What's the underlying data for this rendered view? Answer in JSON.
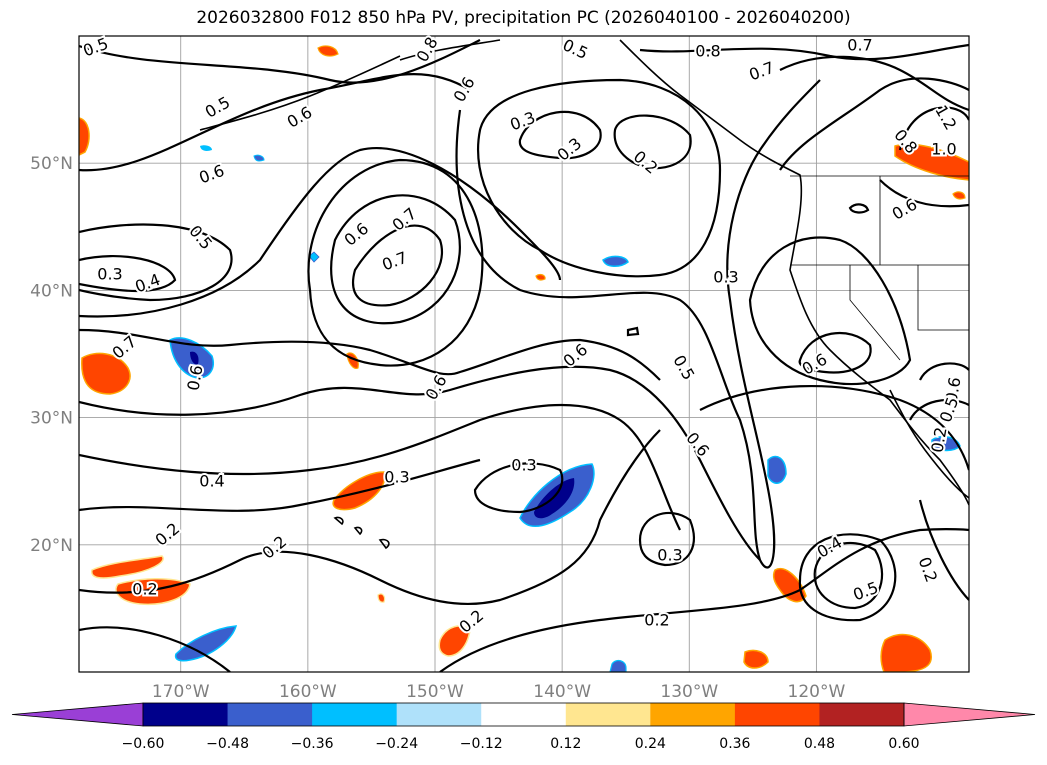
{
  "title": "2026032800 F012 850 hPa PV, precipitation PC (2026040100 - 2026040200)",
  "lat_labels": [
    {
      "text": "50°N",
      "lat": 50
    },
    {
      "text": "40°N",
      "lat": 40
    },
    {
      "text": "30°N",
      "lat": 30
    },
    {
      "text": "20°N",
      "lat": 20
    }
  ],
  "lon_labels": [
    {
      "text": "170°W",
      "lon": -170
    },
    {
      "text": "160°W",
      "lon": -160
    },
    {
      "text": "150°W",
      "lon": -150
    },
    {
      "text": "140°W",
      "lon": -140
    },
    {
      "text": "130°W",
      "lon": -130
    },
    {
      "text": "120°W",
      "lon": -120
    }
  ],
  "map_extent": {
    "lon_min": -178,
    "lon_max": -108,
    "lat_min": 10,
    "lat_max": 60
  },
  "contour_labels": [
    "0.5",
    "0.8",
    "0.5",
    "0.8",
    "0.7",
    "0.7",
    "0.5",
    "0.6",
    "0.6",
    "1.2",
    "1.0",
    "0.3",
    "0.3",
    "0.2",
    "0.8",
    "0.6",
    "0.6",
    "0.5",
    "0.7",
    "0.6",
    "0.7",
    "0.3",
    "0.4",
    "0.3",
    "0.7",
    "0.6",
    "0.6",
    "0.5",
    "0.6",
    "0.6",
    "0.6",
    "0.5",
    "0.3",
    "0.6",
    "0.3",
    "0.4",
    "0.2",
    "0.2",
    "0.3",
    "0.4",
    "0.5",
    "0.2",
    "0.2",
    "0.2",
    "0.2",
    "0.2"
  ],
  "colorbar": {
    "colors": [
      "#9a3fd6",
      "#00008b",
      "#3a5fcd",
      "#00bfff",
      "#afe1fa",
      "#ffffff",
      "#ffe690",
      "#ffa500",
      "#ff4500",
      "#b22222",
      "#ff88aa"
    ],
    "ticks": [
      "−0.60",
      "−0.48",
      "−0.36",
      "−0.24",
      "−0.12",
      "0.12",
      "0.24",
      "0.36",
      "0.48",
      "0.60"
    ]
  },
  "colors": {
    "positive_precip": "#ff4500",
    "negative_precip": "#3a5fcd",
    "grid": "#999999"
  }
}
